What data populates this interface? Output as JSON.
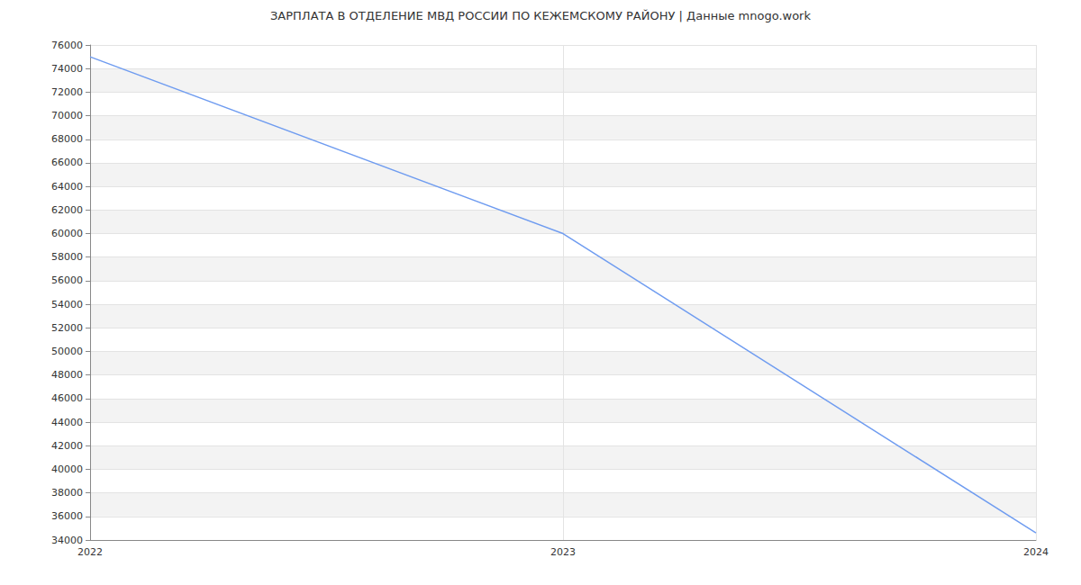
{
  "chart_data": {
    "type": "line",
    "title": "ЗАРПЛАТА В ОТДЕЛЕНИЕ МВД РОССИИ ПО КЕЖЕМСКОМУ РАЙОНУ | Данные mnogo.work",
    "categories": [
      "2022",
      "2023",
      "2024"
    ],
    "values": [
      75000,
      60000,
      34600
    ],
    "color": "#6f9cf0",
    "ylim": [
      34000,
      76000
    ],
    "yticks": [
      34000,
      36000,
      38000,
      40000,
      42000,
      44000,
      46000,
      48000,
      50000,
      52000,
      54000,
      56000,
      58000,
      60000,
      62000,
      64000,
      66000,
      68000,
      70000,
      72000,
      74000,
      76000
    ],
    "grid": true
  }
}
